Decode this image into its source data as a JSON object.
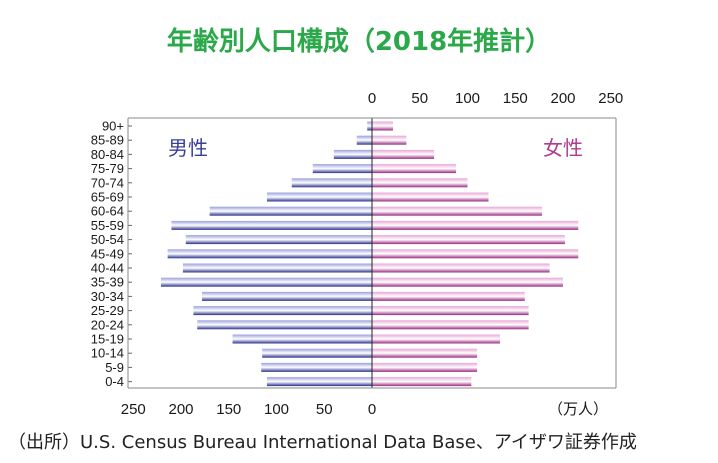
{
  "chart_data": {
    "type": "bar",
    "title": "年齢別人口構成（2018年推計）",
    "unit_label": "（万人）",
    "source": "（出所）U.S. Census Bureau International Data Base、アイザワ証券作成",
    "male_label": "男性",
    "female_label": "女性",
    "male_ticks": [
      "250",
      "200",
      "150",
      "100",
      "50",
      "0"
    ],
    "female_ticks": [
      "0",
      "50",
      "100",
      "150",
      "200",
      "250"
    ],
    "xlim": [
      0,
      250
    ],
    "colors": {
      "male": "#3a3f9a",
      "female": "#b03a8f",
      "title": "#2aa84a"
    },
    "categories": [
      "0-4",
      "5-9",
      "10-14",
      "15-19",
      "20-24",
      "25-29",
      "30-34",
      "35-39",
      "40-44",
      "45-49",
      "50-54",
      "55-59",
      "60-64",
      "65-69",
      "70-74",
      "75-79",
      "80-84",
      "85-89",
      "90+"
    ],
    "series": [
      {
        "name": "男性",
        "values": [
          110,
          116,
          115,
          146,
          183,
          187,
          178,
          221,
          198,
          214,
          195,
          210,
          170,
          110,
          84,
          62,
          40,
          16,
          5
        ]
      },
      {
        "name": "女性",
        "values": [
          104,
          110,
          110,
          134,
          164,
          164,
          160,
          200,
          186,
          216,
          202,
          216,
          178,
          122,
          100,
          88,
          65,
          36,
          22
        ]
      }
    ]
  }
}
